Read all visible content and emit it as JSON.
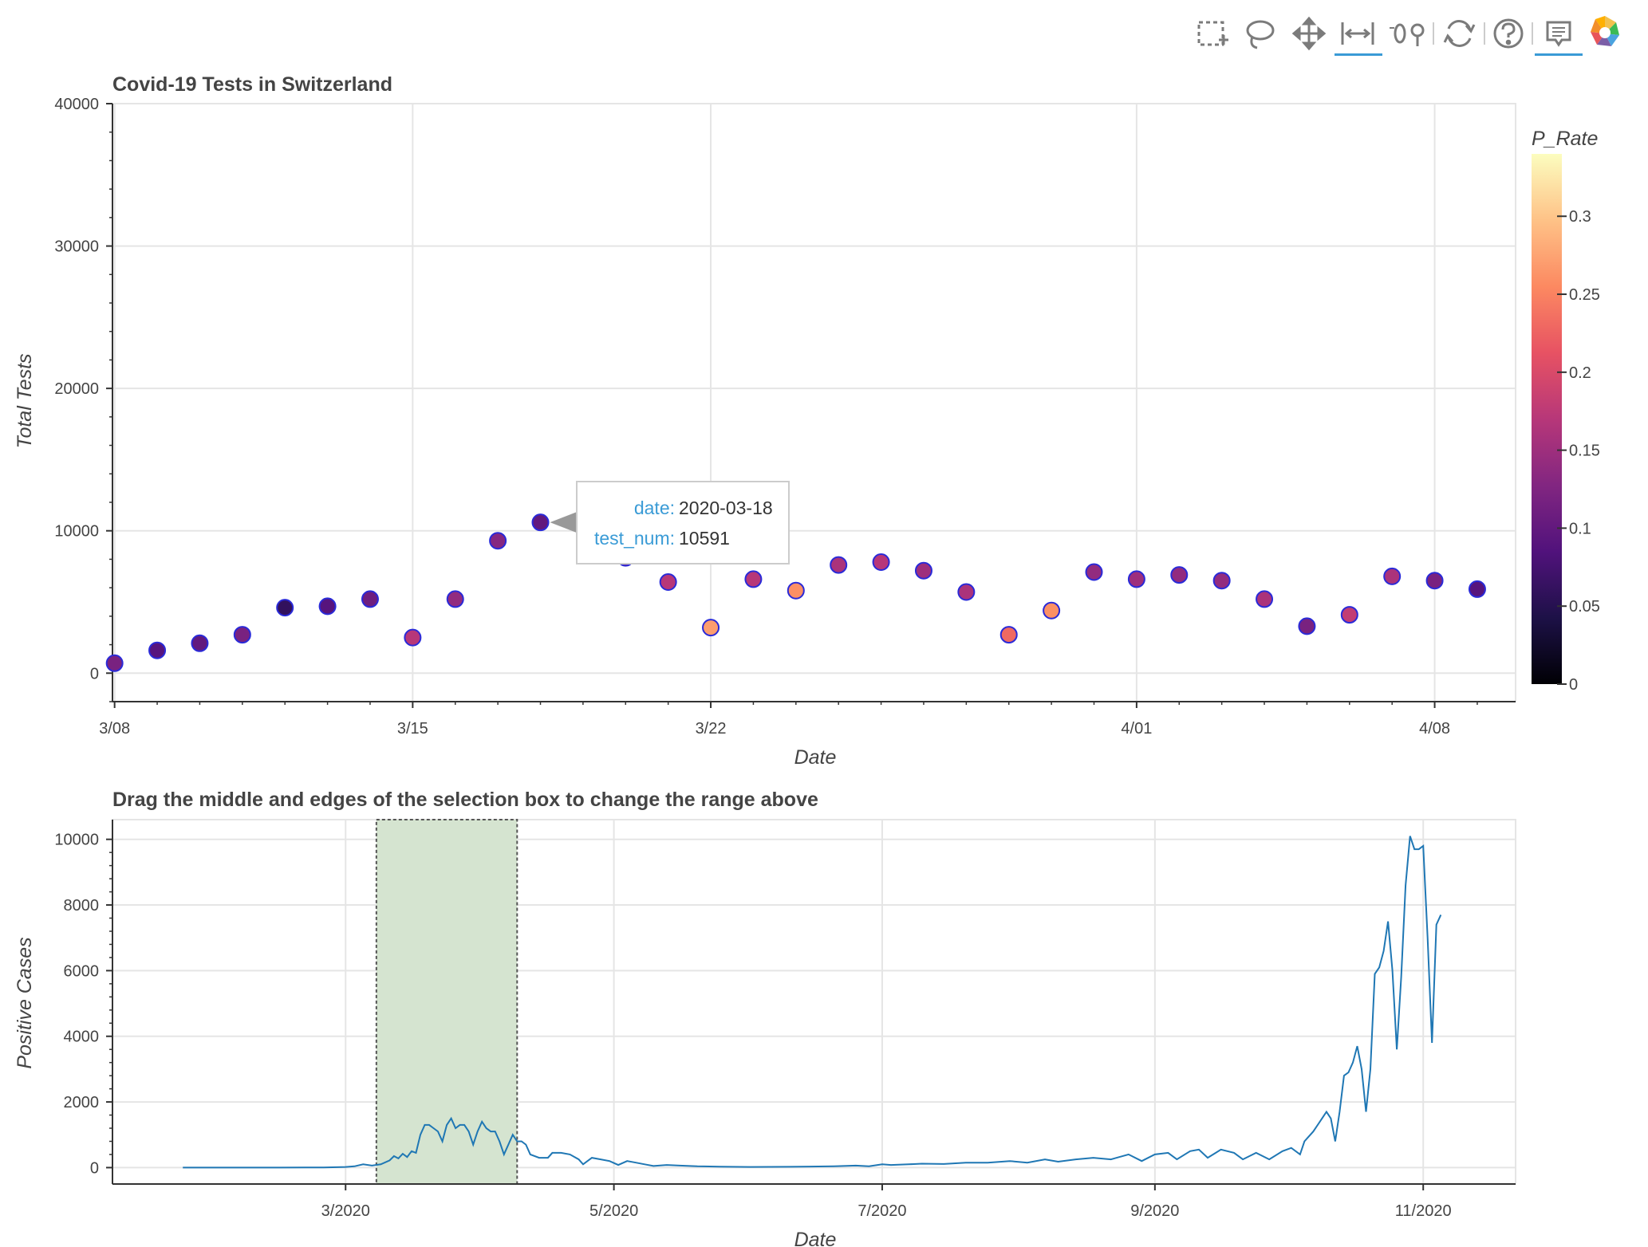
{
  "toolbar": {
    "tools": [
      {
        "name": "box-select-icon",
        "active": false
      },
      {
        "name": "lasso-select-icon",
        "active": false
      },
      {
        "name": "pan-icon",
        "active": false
      },
      {
        "name": "xwheel-zoom-icon",
        "active": true
      },
      {
        "name": "wheel-zoom-icon",
        "active": false
      },
      {
        "name": "reset-icon",
        "active": false
      },
      {
        "name": "help-icon",
        "active": false
      },
      {
        "name": "hover-icon",
        "active": true
      },
      {
        "name": "bokeh-logo-icon",
        "active": false
      }
    ],
    "active_color": "#3a9bd6"
  },
  "chart_data": [
    {
      "type": "scatter",
      "title": "Covid-19 Tests in Switzerland",
      "xlabel": "Date",
      "ylabel": "Total Tests",
      "xlim": [
        "2020-03-08",
        "2020-04-09"
      ],
      "ylim": [
        -2000,
        40000
      ],
      "x_ticks": [
        {
          "date": "2020-03-08",
          "label": "3/08"
        },
        {
          "date": "2020-03-15",
          "label": "3/15"
        },
        {
          "date": "2020-03-22",
          "label": "3/22"
        },
        {
          "date": "2020-04-01",
          "label": "4/01"
        },
        {
          "date": "2020-04-08",
          "label": "4/08"
        }
      ],
      "y_ticks": [
        0,
        10000,
        20000,
        30000,
        40000
      ],
      "grid": true,
      "marker_outline_color": "#2a2ad8",
      "points": [
        {
          "date": "2020-03-08",
          "tests": 700,
          "p_rate": 0.12
        },
        {
          "date": "2020-03-09",
          "tests": 1600,
          "p_rate": 0.09
        },
        {
          "date": "2020-03-10",
          "tests": 2100,
          "p_rate": 0.1
        },
        {
          "date": "2020-03-11",
          "tests": 2700,
          "p_rate": 0.12
        },
        {
          "date": "2020-03-12",
          "tests": 4600,
          "p_rate": 0.06
        },
        {
          "date": "2020-03-13",
          "tests": 4700,
          "p_rate": 0.09
        },
        {
          "date": "2020-03-14",
          "tests": 5200,
          "p_rate": 0.11
        },
        {
          "date": "2020-03-15",
          "tests": 2500,
          "p_rate": 0.17
        },
        {
          "date": "2020-03-16",
          "tests": 5200,
          "p_rate": 0.14
        },
        {
          "date": "2020-03-17",
          "tests": 9300,
          "p_rate": 0.13
        },
        {
          "date": "2020-03-18",
          "tests": 10591,
          "p_rate": 0.1
        },
        {
          "date": "2020-03-20",
          "tests": 8100,
          "p_rate": 0.12
        },
        {
          "date": "2020-03-21",
          "tests": 6400,
          "p_rate": 0.17
        },
        {
          "date": "2020-03-22",
          "tests": 3200,
          "p_rate": 0.27
        },
        {
          "date": "2020-03-23",
          "tests": 6600,
          "p_rate": 0.17
        },
        {
          "date": "2020-03-24",
          "tests": 5800,
          "p_rate": 0.26
        },
        {
          "date": "2020-03-25",
          "tests": 7600,
          "p_rate": 0.16
        },
        {
          "date": "2020-03-26",
          "tests": 7800,
          "p_rate": 0.17
        },
        {
          "date": "2020-03-27",
          "tests": 7200,
          "p_rate": 0.15
        },
        {
          "date": "2020-03-28",
          "tests": 5700,
          "p_rate": 0.16
        },
        {
          "date": "2020-03-29",
          "tests": 2700,
          "p_rate": 0.23
        },
        {
          "date": "2020-03-30",
          "tests": 4400,
          "p_rate": 0.26
        },
        {
          "date": "2020-03-31",
          "tests": 7100,
          "p_rate": 0.14
        },
        {
          "date": "2020-04-01",
          "tests": 6600,
          "p_rate": 0.15
        },
        {
          "date": "2020-04-02",
          "tests": 6900,
          "p_rate": 0.14
        },
        {
          "date": "2020-04-03",
          "tests": 6500,
          "p_rate": 0.14
        },
        {
          "date": "2020-04-04",
          "tests": 5200,
          "p_rate": 0.16
        },
        {
          "date": "2020-04-05",
          "tests": 3300,
          "p_rate": 0.12
        },
        {
          "date": "2020-04-06",
          "tests": 4100,
          "p_rate": 0.18
        },
        {
          "date": "2020-04-07",
          "tests": 6800,
          "p_rate": 0.16
        },
        {
          "date": "2020-04-08",
          "tests": 6500,
          "p_rate": 0.12
        },
        {
          "date": "2020-04-09",
          "tests": 5900,
          "p_rate": 0.09
        }
      ],
      "colorbar": {
        "title": "P_Rate",
        "range": [
          0,
          0.34
        ],
        "ticks": [
          {
            "value": 0,
            "label": "0"
          },
          {
            "value": 0.05,
            "label": "0.05"
          },
          {
            "value": 0.1,
            "label": "0.1"
          },
          {
            "value": 0.15,
            "label": "0.15"
          },
          {
            "value": 0.2,
            "label": "0.2"
          },
          {
            "value": 0.25,
            "label": "0.25"
          },
          {
            "value": 0.3,
            "label": "0.3"
          }
        ],
        "palette": [
          "#000004",
          "#1d1147",
          "#51127c",
          "#822681",
          "#b73779",
          "#e75263",
          "#fc8961",
          "#fec287",
          "#fcfdbf"
        ]
      },
      "tooltip": {
        "anchor_date": "2020-03-18",
        "anchor_tests": 10591,
        "rows": [
          {
            "key": "date:",
            "value": "2020-03-18"
          },
          {
            "key": "test_num:",
            "value": "10591"
          }
        ]
      }
    },
    {
      "type": "line",
      "title": "Drag the middle and edges of the selection box to change the range above",
      "xlabel": "Date",
      "ylabel": "Positive Cases",
      "xlim": [
        "2020-01-08",
        "2020-11-22"
      ],
      "ylim": [
        -500,
        10600
      ],
      "x_ticks": [
        {
          "date": "2020-03-01",
          "label": "3/2020"
        },
        {
          "date": "2020-05-01",
          "label": "5/2020"
        },
        {
          "date": "2020-07-01",
          "label": "7/2020"
        },
        {
          "date": "2020-09-01",
          "label": "9/2020"
        },
        {
          "date": "2020-11-01",
          "label": "11/2020"
        }
      ],
      "y_ticks": [
        0,
        2000,
        4000,
        6000,
        8000,
        10000
      ],
      "grid": true,
      "line_color": "#1f77b4",
      "selection": {
        "start": "2020-03-08",
        "end": "2020-04-09",
        "fill": "#d5e4d0",
        "edge": "#555555"
      },
      "points": [
        {
          "date": "2020-01-24",
          "cases": 0
        },
        {
          "date": "2020-02-01",
          "cases": 0
        },
        {
          "date": "2020-02-15",
          "cases": 0
        },
        {
          "date": "2020-02-25",
          "cases": 5
        },
        {
          "date": "2020-03-01",
          "cases": 20
        },
        {
          "date": "2020-03-03",
          "cases": 40
        },
        {
          "date": "2020-03-05",
          "cases": 100
        },
        {
          "date": "2020-03-07",
          "cases": 60
        },
        {
          "date": "2020-03-09",
          "cases": 100
        },
        {
          "date": "2020-03-11",
          "cases": 220
        },
        {
          "date": "2020-03-12",
          "cases": 350
        },
        {
          "date": "2020-03-13",
          "cases": 280
        },
        {
          "date": "2020-03-14",
          "cases": 420
        },
        {
          "date": "2020-03-15",
          "cases": 320
        },
        {
          "date": "2020-03-16",
          "cases": 500
        },
        {
          "date": "2020-03-17",
          "cases": 450
        },
        {
          "date": "2020-03-18",
          "cases": 1000
        },
        {
          "date": "2020-03-19",
          "cases": 1300
        },
        {
          "date": "2020-03-20",
          "cases": 1300
        },
        {
          "date": "2020-03-21",
          "cases": 1200
        },
        {
          "date": "2020-03-22",
          "cases": 1100
        },
        {
          "date": "2020-03-23",
          "cases": 800
        },
        {
          "date": "2020-03-24",
          "cases": 1300
        },
        {
          "date": "2020-03-25",
          "cases": 1500
        },
        {
          "date": "2020-03-26",
          "cases": 1200
        },
        {
          "date": "2020-03-27",
          "cases": 1300
        },
        {
          "date": "2020-03-28",
          "cases": 1300
        },
        {
          "date": "2020-03-29",
          "cases": 1100
        },
        {
          "date": "2020-03-30",
          "cases": 700
        },
        {
          "date": "2020-03-31",
          "cases": 1100
        },
        {
          "date": "2020-04-01",
          "cases": 1400
        },
        {
          "date": "2020-04-02",
          "cases": 1200
        },
        {
          "date": "2020-04-03",
          "cases": 1100
        },
        {
          "date": "2020-04-04",
          "cases": 1100
        },
        {
          "date": "2020-04-05",
          "cases": 800
        },
        {
          "date": "2020-04-06",
          "cases": 400
        },
        {
          "date": "2020-04-07",
          "cases": 700
        },
        {
          "date": "2020-04-08",
          "cases": 1000
        },
        {
          "date": "2020-04-09",
          "cases": 800
        },
        {
          "date": "2020-04-10",
          "cases": 800
        },
        {
          "date": "2020-04-11",
          "cases": 700
        },
        {
          "date": "2020-04-12",
          "cases": 400
        },
        {
          "date": "2020-04-14",
          "cases": 300
        },
        {
          "date": "2020-04-16",
          "cases": 300
        },
        {
          "date": "2020-04-17",
          "cases": 450
        },
        {
          "date": "2020-04-19",
          "cases": 450
        },
        {
          "date": "2020-04-21",
          "cases": 400
        },
        {
          "date": "2020-04-23",
          "cases": 250
        },
        {
          "date": "2020-04-24",
          "cases": 100
        },
        {
          "date": "2020-04-26",
          "cases": 300
        },
        {
          "date": "2020-04-28",
          "cases": 250
        },
        {
          "date": "2020-04-30",
          "cases": 200
        },
        {
          "date": "2020-05-02",
          "cases": 80
        },
        {
          "date": "2020-05-04",
          "cases": 200
        },
        {
          "date": "2020-05-06",
          "cases": 150
        },
        {
          "date": "2020-05-08",
          "cases": 100
        },
        {
          "date": "2020-05-10",
          "cases": 50
        },
        {
          "date": "2020-05-13",
          "cases": 80
        },
        {
          "date": "2020-05-16",
          "cases": 60
        },
        {
          "date": "2020-05-20",
          "cases": 40
        },
        {
          "date": "2020-05-25",
          "cases": 30
        },
        {
          "date": "2020-06-01",
          "cases": 20
        },
        {
          "date": "2020-06-10",
          "cases": 25
        },
        {
          "date": "2020-06-20",
          "cases": 40
        },
        {
          "date": "2020-06-25",
          "cases": 60
        },
        {
          "date": "2020-06-28",
          "cases": 40
        },
        {
          "date": "2020-07-01",
          "cases": 100
        },
        {
          "date": "2020-07-03",
          "cases": 80
        },
        {
          "date": "2020-07-07",
          "cases": 100
        },
        {
          "date": "2020-07-10",
          "cases": 120
        },
        {
          "date": "2020-07-15",
          "cases": 110
        },
        {
          "date": "2020-07-20",
          "cases": 150
        },
        {
          "date": "2020-07-25",
          "cases": 150
        },
        {
          "date": "2020-07-30",
          "cases": 200
        },
        {
          "date": "2020-08-03",
          "cases": 150
        },
        {
          "date": "2020-08-07",
          "cases": 250
        },
        {
          "date": "2020-08-10",
          "cases": 180
        },
        {
          "date": "2020-08-14",
          "cases": 250
        },
        {
          "date": "2020-08-18",
          "cases": 300
        },
        {
          "date": "2020-08-22",
          "cases": 250
        },
        {
          "date": "2020-08-26",
          "cases": 400
        },
        {
          "date": "2020-08-29",
          "cases": 200
        },
        {
          "date": "2020-09-01",
          "cases": 400
        },
        {
          "date": "2020-09-04",
          "cases": 450
        },
        {
          "date": "2020-09-06",
          "cases": 250
        },
        {
          "date": "2020-09-09",
          "cases": 500
        },
        {
          "date": "2020-09-11",
          "cases": 550
        },
        {
          "date": "2020-09-13",
          "cases": 300
        },
        {
          "date": "2020-09-16",
          "cases": 550
        },
        {
          "date": "2020-09-19",
          "cases": 450
        },
        {
          "date": "2020-09-21",
          "cases": 250
        },
        {
          "date": "2020-09-24",
          "cases": 450
        },
        {
          "date": "2020-09-27",
          "cases": 250
        },
        {
          "date": "2020-09-30",
          "cases": 500
        },
        {
          "date": "2020-10-02",
          "cases": 600
        },
        {
          "date": "2020-10-04",
          "cases": 400
        },
        {
          "date": "2020-10-05",
          "cases": 800
        },
        {
          "date": "2020-10-07",
          "cases": 1100
        },
        {
          "date": "2020-10-09",
          "cases": 1500
        },
        {
          "date": "2020-10-10",
          "cases": 1700
        },
        {
          "date": "2020-10-11",
          "cases": 1500
        },
        {
          "date": "2020-10-12",
          "cases": 800
        },
        {
          "date": "2020-10-13",
          "cases": 1700
        },
        {
          "date": "2020-10-14",
          "cases": 2800
        },
        {
          "date": "2020-10-15",
          "cases": 2900
        },
        {
          "date": "2020-10-16",
          "cases": 3200
        },
        {
          "date": "2020-10-17",
          "cases": 3700
        },
        {
          "date": "2020-10-18",
          "cases": 3000
        },
        {
          "date": "2020-10-19",
          "cases": 1700
        },
        {
          "date": "2020-10-20",
          "cases": 3000
        },
        {
          "date": "2020-10-21",
          "cases": 5900
        },
        {
          "date": "2020-10-22",
          "cases": 6100
        },
        {
          "date": "2020-10-23",
          "cases": 6600
        },
        {
          "date": "2020-10-24",
          "cases": 7500
        },
        {
          "date": "2020-10-25",
          "cases": 6000
        },
        {
          "date": "2020-10-26",
          "cases": 3600
        },
        {
          "date": "2020-10-27",
          "cases": 5800
        },
        {
          "date": "2020-10-28",
          "cases": 8600
        },
        {
          "date": "2020-10-29",
          "cases": 10100
        },
        {
          "date": "2020-10-30",
          "cases": 9700
        },
        {
          "date": "2020-10-31",
          "cases": 9700
        },
        {
          "date": "2020-11-01",
          "cases": 9800
        },
        {
          "date": "2020-11-02",
          "cases": 7000
        },
        {
          "date": "2020-11-03",
          "cases": 3800
        },
        {
          "date": "2020-11-04",
          "cases": 7400
        },
        {
          "date": "2020-11-05",
          "cases": 7700
        }
      ]
    }
  ]
}
